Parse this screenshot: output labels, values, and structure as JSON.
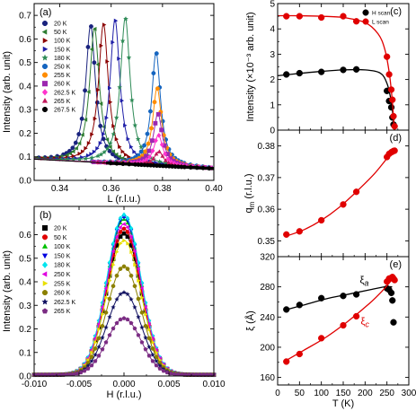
{
  "chart_data": [
    {
      "id": "a",
      "panel_label": "(a)",
      "type": "line",
      "xlabel": "L (r.l.u.)",
      "ylabel": "Intensity (arb. unit)",
      "xlim": [
        0.33,
        0.4
      ],
      "ylim": [
        0.0,
        0.75
      ],
      "xticks": [
        0.34,
        0.36,
        0.38,
        0.4
      ],
      "xtick_labels": [
        "0.34",
        "0.36",
        "0.38",
        "0.40"
      ],
      "yticks": [
        0.0,
        0.1,
        0.2,
        0.3,
        0.4,
        0.5,
        0.6,
        0.7
      ],
      "ytick_labels": [
        "0.0",
        "0.1",
        "0.2",
        "0.3",
        "0.4",
        "0.5",
        "0.6",
        "0.7"
      ],
      "legend_position": "left",
      "series": [
        {
          "name": "20 K",
          "color": "#1a237e",
          "marker": "circle",
          "center": 0.352,
          "amplitude": 0.58,
          "width": 0.0023
        },
        {
          "name": "50 K",
          "color": "#2e7d32",
          "marker": "triangle-left",
          "center": 0.3535,
          "amplitude": 0.57,
          "width": 0.0023
        },
        {
          "name": "100 K",
          "color": "#8b0000",
          "marker": "triangle-right",
          "center": 0.357,
          "amplitude": 0.59,
          "width": 0.0023
        },
        {
          "name": "150 K",
          "color": "#1f1fa8",
          "marker": "triangle-right",
          "center": 0.3615,
          "amplitude": 0.61,
          "width": 0.0023
        },
        {
          "name": "180 K",
          "color": "#2e8b57",
          "marker": "star",
          "center": 0.3655,
          "amplitude": 0.62,
          "width": 0.0023
        },
        {
          "name": "250 K",
          "color": "#1565c0",
          "marker": "circle",
          "center": 0.3775,
          "amplitude": 0.48,
          "width": 0.0021
        },
        {
          "name": "255 K",
          "color": "#ff8c00",
          "marker": "circle",
          "center": 0.3779,
          "amplitude": 0.33,
          "width": 0.0021
        },
        {
          "name": "260 K",
          "color": "#9c27b0",
          "marker": "square",
          "center": 0.3782,
          "amplitude": 0.22,
          "width": 0.0021
        },
        {
          "name": "262.5 K",
          "color": "#ff33cc",
          "marker": "diamond",
          "center": 0.3784,
          "amplitude": 0.13,
          "width": 0.0021
        },
        {
          "name": "265 K",
          "color": "#c2185b",
          "marker": "triangle-up",
          "center": 0.3786,
          "amplitude": 0.06,
          "width": 0.0021
        },
        {
          "name": "267.5 K",
          "color": "#000000",
          "marker": "circle",
          "center": 0.3788,
          "amplitude": 0.0,
          "width": 0.0021
        }
      ],
      "background": {
        "x": [
          0.33,
          0.4
        ],
        "y": [
          0.09,
          0.05
        ]
      }
    },
    {
      "id": "b",
      "panel_label": "(b)",
      "type": "line",
      "xlabel": "H (r.l.u.)",
      "ylabel": "Intensity (arb. unit)",
      "xlim": [
        -0.01,
        0.01
      ],
      "ylim": [
        0.0,
        0.72
      ],
      "xticks": [
        -0.01,
        -0.005,
        0.0,
        0.005,
        0.01
      ],
      "xtick_labels": [
        "-0.010",
        "-0.005",
        "0.000",
        "0.005",
        "0.010"
      ],
      "yticks": [
        0.0,
        0.1,
        0.2,
        0.3,
        0.4,
        0.5,
        0.6
      ],
      "ytick_labels": [
        "0.0",
        "0.1",
        "0.2",
        "0.3",
        "0.4",
        "0.5",
        "0.6"
      ],
      "legend_position": "left",
      "series": [
        {
          "name": "20 K",
          "color": "#000000",
          "marker": "square",
          "amplitude": 0.6,
          "width": 0.0019
        },
        {
          "name": "50 K",
          "color": "#e00000",
          "marker": "circle",
          "amplitude": 0.62,
          "width": 0.0019
        },
        {
          "name": "100 K",
          "color": "#00c000",
          "marker": "triangle-up",
          "amplitude": 0.66,
          "width": 0.0019
        },
        {
          "name": "150 K",
          "color": "#0000e0",
          "marker": "triangle-down",
          "amplitude": 0.67,
          "width": 0.0019
        },
        {
          "name": "180 K",
          "color": "#00e5ee",
          "marker": "diamond",
          "amplitude": 0.68,
          "width": 0.0019
        },
        {
          "name": "250 K",
          "color": "#e000e0",
          "marker": "triangle-left",
          "amplitude": 0.64,
          "width": 0.0019
        },
        {
          "name": "255 K",
          "color": "#e8e000",
          "marker": "triangle-right",
          "amplitude": 0.57,
          "width": 0.0019
        },
        {
          "name": "260 K",
          "color": "#8b8000",
          "marker": "circle",
          "amplitude": 0.46,
          "width": 0.0019
        },
        {
          "name": "262.5 K",
          "color": "#101060",
          "marker": "star",
          "amplitude": 0.35,
          "width": 0.0019
        },
        {
          "name": "265 K",
          "color": "#7b2c83",
          "marker": "pentagon",
          "amplitude": 0.24,
          "width": 0.0019
        }
      ]
    },
    {
      "id": "c",
      "panel_label": "(c)",
      "type": "scatter",
      "xlabel": "",
      "ylabel": "Intensity (×10⁻³ arb. unit)",
      "xlim": [
        0,
        300
      ],
      "ylim": [
        0,
        5
      ],
      "yticks": [
        0,
        1,
        2,
        3,
        4,
        5
      ],
      "ytick_labels": [
        "0",
        "1",
        "2",
        "3",
        "4",
        "5"
      ],
      "legend_position": "top-right",
      "series": [
        {
          "name": "H scan",
          "color": "#000000",
          "marker": "circle",
          "x": [
            20,
            50,
            100,
            150,
            180,
            250,
            255,
            260,
            262.5,
            265
          ],
          "y": [
            2.2,
            2.25,
            2.3,
            2.38,
            2.4,
            1.55,
            1.15,
            0.9,
            0.5,
            0.22
          ],
          "fit_x": [
            0,
            50,
            100,
            150,
            200,
            235,
            250,
            258,
            263,
            267
          ],
          "fit_y": [
            2.15,
            2.24,
            2.32,
            2.38,
            2.38,
            2.25,
            1.85,
            1.3,
            0.7,
            0.0
          ]
        },
        {
          "name": "L scan",
          "color": "#e00000",
          "marker": "circle",
          "x": [
            20,
            50,
            100,
            150,
            180,
            250,
            255,
            260,
            262.5,
            265,
            267.5
          ],
          "y": [
            4.5,
            4.5,
            4.45,
            4.5,
            4.3,
            2.9,
            2.2,
            1.6,
            1.2,
            0.55,
            0.15
          ],
          "fit_x": [
            0,
            50,
            100,
            150,
            200,
            230,
            245,
            255,
            262,
            267
          ],
          "fit_y": [
            4.52,
            4.52,
            4.5,
            4.45,
            4.25,
            3.8,
            3.2,
            2.3,
            1.2,
            0.0
          ]
        }
      ]
    },
    {
      "id": "d",
      "panel_label": "(d)",
      "type": "scatter",
      "xlabel": "",
      "ylabel": "q_m (r.l.u.)",
      "ylabel_main": "q",
      "ylabel_sub": "m",
      "ylabel_rest": " (r.l.u.)",
      "xlim": [
        0,
        300
      ],
      "ylim": [
        0.345,
        0.385
      ],
      "yticks": [
        0.35,
        0.36,
        0.37,
        0.38
      ],
      "ytick_labels": [
        "0.35",
        "0.36",
        "0.37",
        "0.38"
      ],
      "series": [
        {
          "name": "q_m",
          "color": "#e00000",
          "marker": "circle",
          "x": [
            20,
            50,
            100,
            150,
            180,
            250,
            255,
            260,
            262.5,
            265,
            267.5
          ],
          "y": [
            0.352,
            0.353,
            0.3565,
            0.3615,
            0.3655,
            0.3765,
            0.3775,
            0.378,
            0.3782,
            0.3784,
            0.3785
          ],
          "fit_x": [
            20,
            60,
            100,
            140,
            180,
            220,
            250,
            267.5
          ],
          "fit_y": [
            0.3515,
            0.3535,
            0.3565,
            0.3605,
            0.3655,
            0.371,
            0.376,
            0.3785
          ]
        }
      ]
    },
    {
      "id": "e",
      "panel_label": "(e)",
      "type": "scatter",
      "xlabel": "T (K)",
      "ylabel": "ξ (Å)",
      "xlim": [
        0,
        300
      ],
      "ylim": [
        150,
        320
      ],
      "xticks": [
        0,
        50,
        100,
        150,
        200,
        250,
        300
      ],
      "xtick_labels": [
        "0",
        "50",
        "100",
        "150",
        "200",
        "250",
        "300"
      ],
      "yticks": [
        160,
        200,
        240,
        280,
        320
      ],
      "ytick_labels": [
        "160",
        "200",
        "240",
        "280",
        "320"
      ],
      "series": [
        {
          "name": "ξ_a",
          "label_main": "ξ",
          "label_sub": "a",
          "color": "#000000",
          "marker": "circle",
          "x": [
            20,
            50,
            100,
            150,
            180,
            250,
            255,
            260,
            262.5,
            265
          ],
          "y": [
            250,
            256,
            265,
            268,
            270,
            278,
            276,
            272,
            262,
            233
          ],
          "fit_x": [
            15,
            60,
            110,
            160,
            210,
            245,
            262
          ],
          "fit_y": [
            249,
            256,
            264,
            270,
            276,
            280,
            280
          ],
          "label_x": 188,
          "label_y": 285
        },
        {
          "name": "ξ_c",
          "label_main": "ξ",
          "label_sub": "c",
          "color": "#e00000",
          "marker": "circle",
          "x": [
            20,
            50,
            100,
            150,
            180,
            250,
            255,
            260,
            262.5,
            265,
            267.5
          ],
          "y": [
            181,
            191,
            212,
            229,
            241,
            287,
            291,
            292,
            293,
            291,
            289
          ],
          "fit_x": [
            15,
            60,
            110,
            160,
            210,
            240,
            258,
            267
          ],
          "fit_y": [
            181,
            196,
            213,
            234,
            258,
            275,
            287,
            292
          ],
          "label_x": 190,
          "label_y": 230
        }
      ]
    }
  ],
  "legend_c": {
    "title_markers": [
      "H scan",
      "L scan"
    ]
  }
}
